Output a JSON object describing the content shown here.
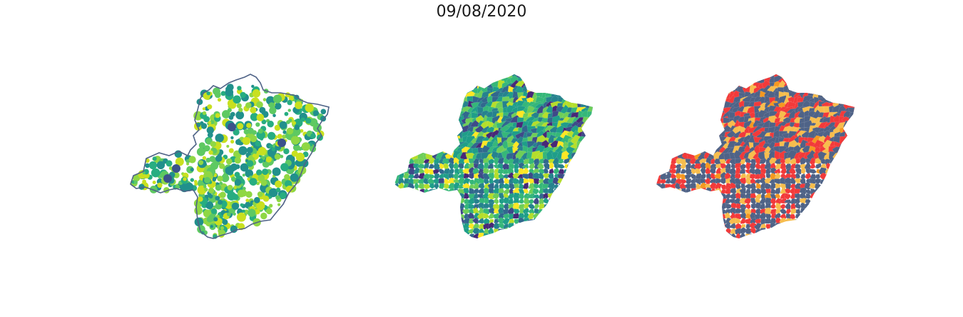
{
  "title": "09/08/2020",
  "panels": [
    {
      "kind": "bubble-map",
      "region_outline_color": "#4f6387",
      "palette": [
        "#440154",
        "#3b528b",
        "#21908c",
        "#27ad81",
        "#5ec962",
        "#8fd744",
        "#c8e020"
      ]
    },
    {
      "kind": "choropleth",
      "palette": [
        "#482878",
        "#3e4a89",
        "#31688e",
        "#26828e",
        "#1f9e89",
        "#35b779",
        "#6ece58",
        "#b5de2b",
        "#fde725"
      ]
    },
    {
      "kind": "categorical-choropleth",
      "palette": [
        "#4f6387",
        "#f23a3a",
        "#f7bd4d",
        "#f59820"
      ]
    }
  ]
}
